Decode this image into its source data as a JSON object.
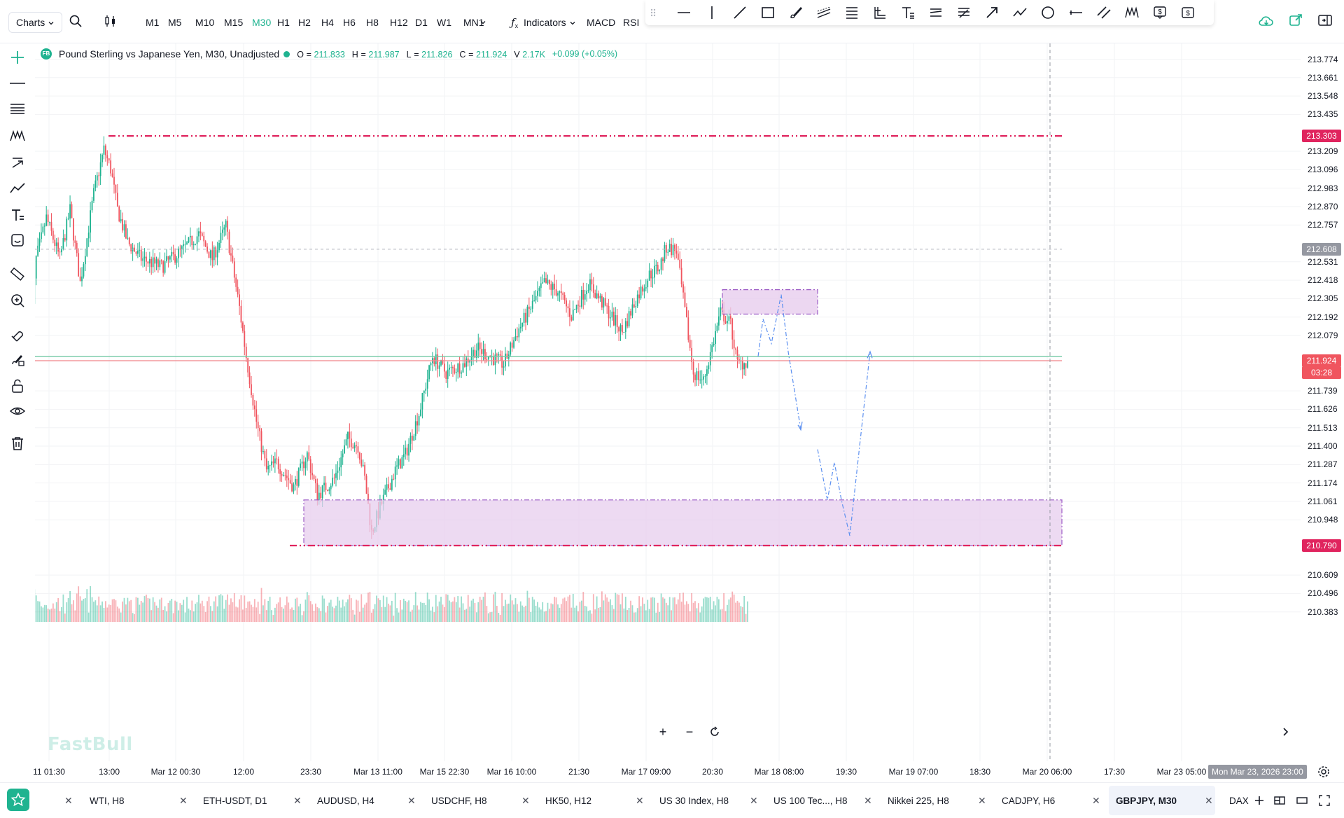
{
  "toolbar": {
    "charts_label": "Charts",
    "timeframes": [
      {
        "label": "M1",
        "active": false
      },
      {
        "label": "M5",
        "active": false
      },
      {
        "label": "M10",
        "active": false
      },
      {
        "label": "M15",
        "active": false
      },
      {
        "label": "M30",
        "active": true
      },
      {
        "label": "H1",
        "active": false
      },
      {
        "label": "H2",
        "active": false
      },
      {
        "label": "H4",
        "active": false
      },
      {
        "label": "H6",
        "active": false
      },
      {
        "label": "H8",
        "active": false
      },
      {
        "label": "H12",
        "active": false
      },
      {
        "label": "D1",
        "active": false
      },
      {
        "label": "W1",
        "active": false
      },
      {
        "label": "MN1",
        "active": false
      }
    ],
    "indicators_label": "Indicators",
    "quick_indicators": [
      "MACD",
      "RSI"
    ]
  },
  "legend": {
    "title": "Pound Sterling vs Japanese Yen, M30, Unadjusted",
    "badge": "FB",
    "open_label": "O",
    "open": "211.833",
    "high_label": "H",
    "high": "211.987",
    "low_label": "L",
    "low": "211.826",
    "close_label": "C",
    "close": "211.924",
    "volume_label": "V",
    "volume": "2.17K",
    "change": "+0.099 (+0.05%)"
  },
  "price_axis": {
    "ticks": [
      "213.774",
      "213.661",
      "213.548",
      "213.435",
      "213.209",
      "213.096",
      "212.983",
      "212.870",
      "212.757",
      "212.531",
      "212.418",
      "212.305",
      "212.192",
      "212.079",
      "211.739",
      "211.626",
      "211.513",
      "211.400",
      "211.287",
      "211.174",
      "211.061",
      "210.948",
      "210.609",
      "210.496",
      "210.383"
    ],
    "resistance_tag": "213.303",
    "dashed_tag": "212.608",
    "current_price_tag": "211.924",
    "countdown_tag": "03:28",
    "support_tag": "210.790"
  },
  "time_axis": {
    "ticks": [
      "11 01:30",
      "Mar 12 00:30",
      "13:00",
      "12:00",
      "23:30",
      "Mar 13 11:00",
      "Mar 15 22:30",
      "Mar 16 10:00",
      "21:30",
      "Mar 17 09:00",
      "20:30",
      "Mar 18 08:00",
      "19:30",
      "Mar 19 07:00",
      "18:30",
      "Mar 20 06:00",
      "17:30",
      "Mar 23 05:00"
    ],
    "crosshair_label": "Mon Mar 23, 2026 23:00"
  },
  "watermark": "FastBull",
  "tabs": [
    {
      "label": "WTI, H8",
      "active": false
    },
    {
      "label": "ETH-USDT, D1",
      "active": false
    },
    {
      "label": "AUDUSD, H4",
      "active": false
    },
    {
      "label": "USDCHF, H8",
      "active": false
    },
    {
      "label": "HK50, H12",
      "active": false
    },
    {
      "label": "US 30 Index, H8",
      "active": false
    },
    {
      "label": "US 100 Tec..., H8",
      "active": false
    },
    {
      "label": "Nikkei 225, H8",
      "active": false
    },
    {
      "label": "CADJPY, H6",
      "active": false
    },
    {
      "label": "GBPJPY, M30",
      "active": true
    },
    {
      "label": "DAX",
      "active": false
    }
  ],
  "colors": {
    "up": "#1fb390",
    "down": "#f0555f",
    "level_line": "#e0245e",
    "zone_fill": "#e7cdee",
    "zone_border": "#9c5cc6",
    "projection": "#5b8ff0",
    "accent": "#1fb390"
  }
}
